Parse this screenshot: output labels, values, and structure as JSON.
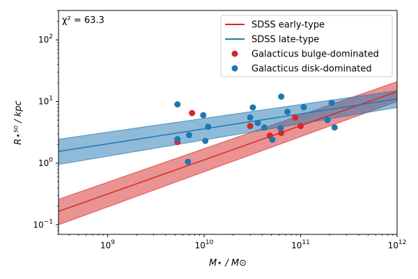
{
  "chart_data": {
    "type": "scatter",
    "title": "",
    "annotation": "χ² = 63.3",
    "xlabel": "M⋆ / M⊙",
    "ylabel": "R⋆⁵⁰ / kpc",
    "xscale": "log",
    "yscale": "log",
    "xlim": [
      310000000.0,
      1000000000000.0
    ],
    "ylim": [
      0.07,
      300
    ],
    "x_ticks": [
      {
        "value": 1000000000.0,
        "mant": "10",
        "exp": "9"
      },
      {
        "value": 10000000000.0,
        "mant": "10",
        "exp": "10"
      },
      {
        "value": 100000000000.0,
        "mant": "10",
        "exp": "11"
      },
      {
        "value": 1000000000000.0,
        "mant": "10",
        "exp": "12"
      }
    ],
    "y_ticks": [
      {
        "value": 0.1,
        "mant": "10",
        "exp": "−1"
      },
      {
        "value": 1,
        "mant": "10",
        "exp": "0"
      },
      {
        "value": 10,
        "mant": "10",
        "exp": "1"
      },
      {
        "value": 100,
        "mant": "10",
        "exp": "2"
      }
    ],
    "legend_position": "top-right",
    "colors": {
      "red": "#d62728",
      "blue": "#1f77b4"
    },
    "series": [
      {
        "name": "SDSS early-type",
        "kind": "line",
        "color": "#d62728",
        "x": [
          310000000.0,
          1000000000000.0
        ],
        "y": [
          0.165,
          14.5
        ],
        "band_lower": [
          0.1,
          10.0
        ],
        "band_upper": [
          0.26,
          21.0
        ]
      },
      {
        "name": "SDSS late-type",
        "kind": "line",
        "color": "#1f77b4",
        "x": [
          310000000.0,
          1000000000000.0
        ],
        "y": [
          1.55,
          11.0
        ],
        "band_lower": [
          0.95,
          8.0
        ],
        "band_upper": [
          2.45,
          15.0
        ]
      },
      {
        "name": "Galacticus bulge-dominated",
        "kind": "scatter",
        "color": "#d62728",
        "x": [
          7500000000.0,
          5300000000.0,
          30000000000.0,
          48000000000.0,
          63000000000.0,
          88000000000.0,
          100000000000.0
        ],
        "y": [
          6.5,
          2.2,
          4.0,
          2.8,
          3.1,
          5.5,
          4.0
        ]
      },
      {
        "name": "Galacticus disk-dominated",
        "kind": "scatter",
        "color": "#1f77b4",
        "x": [
          5300000000.0,
          5300000000.0,
          7000000000.0,
          6800000000.0,
          9800000000.0,
          10300000000.0,
          11000000000.0,
          30000000000.0,
          32000000000.0,
          36000000000.0,
          42000000000.0,
          51000000000.0,
          62000000000.0,
          63000000000.0,
          73000000000.0,
          108000000000.0,
          190000000000.0,
          210000000000.0,
          225000000000.0
        ],
        "y": [
          9.0,
          2.45,
          2.85,
          1.05,
          6.0,
          2.3,
          3.9,
          5.5,
          8.0,
          4.5,
          3.8,
          2.4,
          3.7,
          12.0,
          6.8,
          8.1,
          5.0,
          9.5,
          3.8
        ]
      }
    ]
  }
}
